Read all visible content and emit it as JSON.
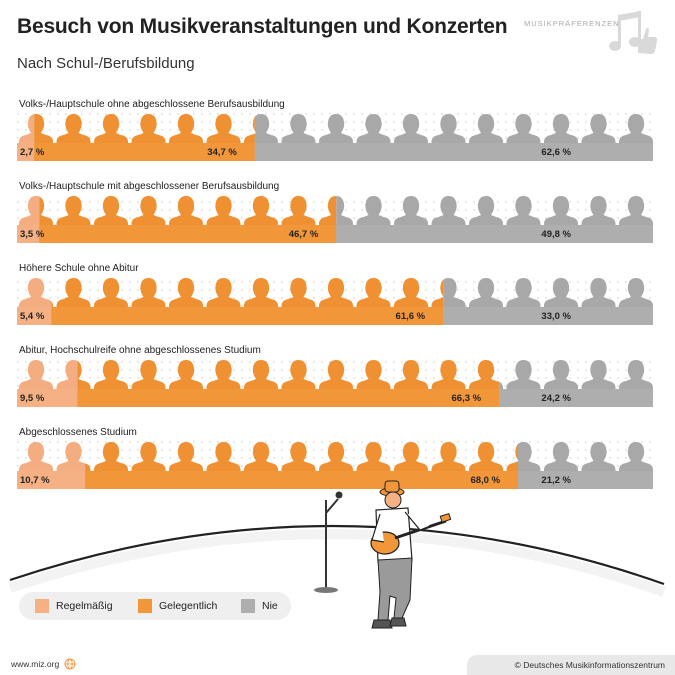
{
  "header": {
    "title": "Besuch von Musikveranstaltungen und Konzerten",
    "subtitle": "Nach Schul-/Berufsbildung",
    "badge": "MUSIKPRÄFERENZEN"
  },
  "colors": {
    "regelmaessig": "#f5b184",
    "gelegentlich": "#f2963a",
    "nie": "#aeaeae",
    "silhouette_regelmaessig": "#f4ad80",
    "silhouette_gelegentlich": "#ef9133",
    "silhouette_nie": "#a8a8a8"
  },
  "chart_data": {
    "type": "bar",
    "orientation": "horizontal-stacked-100",
    "categories": [
      "Volks-/Hauptschule ohne abgeschlossene Berufsausbildung",
      "Volks-/Hauptschule mit abgeschlossener Berufsausbildung",
      "Höhere Schule ohne Abitur",
      "Abitur, Hochschulreife ohne abgeschlossenes Studium",
      "Abgeschlossenes Studium"
    ],
    "series": [
      {
        "name": "Regelmäßig",
        "values": [
          2.7,
          3.5,
          5.4,
          9.5,
          10.7
        ],
        "labels": [
          "2,7 %",
          "3,5 %",
          "5,4 %",
          "9,5 %",
          "10,7 %"
        ]
      },
      {
        "name": "Gelegentlich",
        "values": [
          34.7,
          46.7,
          61.6,
          66.3,
          68.0
        ],
        "labels": [
          "34,7 %",
          "46,7 %",
          "61,6 %",
          "66,3 %",
          "68,0 %"
        ]
      },
      {
        "name": "Nie",
        "values": [
          62.6,
          49.8,
          33.0,
          24.2,
          21.2
        ],
        "labels": [
          "62,6 %",
          "49,8 %",
          "33,0 %",
          "24,2 %",
          "21,2 %"
        ]
      }
    ],
    "xlim": [
      0,
      100
    ],
    "legend_position": "bottom-left"
  },
  "legend": {
    "items": [
      "Regelmäßig",
      "Gelegentlich",
      "Nie"
    ]
  },
  "footer": {
    "website": "www.miz.org",
    "copyright": "© Deutsches Musikinformationszentrum"
  }
}
